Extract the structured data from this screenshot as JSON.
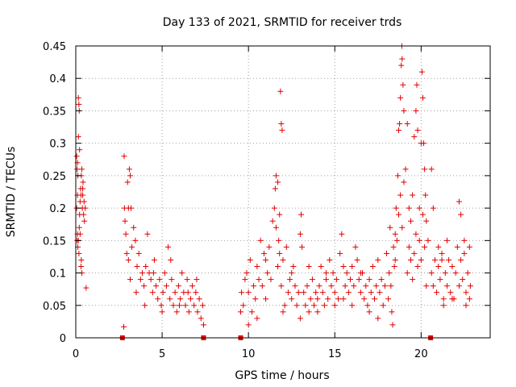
{
  "chart_data": {
    "type": "scatter",
    "title": "Day 133 of 2021, SRMTID for receiver trds",
    "xlabel": "GPS time / hours",
    "ylabel": "SRMTID / TECUs",
    "xlim": [
      0,
      24
    ],
    "ylim": [
      0,
      0.45
    ],
    "xticks": [
      0,
      5,
      10,
      15,
      20
    ],
    "yticks": [
      0,
      0.05,
      0.1,
      0.15,
      0.2,
      0.25,
      0.3,
      0.35,
      0.4,
      0.45
    ],
    "xtick_labels": [
      "0",
      "5",
      "10",
      "15",
      "20"
    ],
    "ytick_labels": [
      "0",
      "0.05",
      "0.1",
      "0.15",
      "0.2",
      "0.25",
      "0.3",
      "0.35",
      "0.4",
      "0.45"
    ],
    "grid": true,
    "marker": "+",
    "color": "#e00000",
    "gap_markers_x": [
      2.7,
      7.4,
      9.55,
      20.55
    ],
    "series": [
      {
        "name": "SRMTID",
        "points": [
          [
            0.05,
            0.28
          ],
          [
            0.08,
            0.26
          ],
          [
            0.1,
            0.27
          ],
          [
            0.12,
            0.25
          ],
          [
            0.15,
            0.37
          ],
          [
            0.15,
            0.31
          ],
          [
            0.18,
            0.36
          ],
          [
            0.2,
            0.35
          ],
          [
            0.05,
            0.2
          ],
          [
            0.1,
            0.16
          ],
          [
            0.12,
            0.14
          ],
          [
            0.15,
            0.15
          ],
          [
            0.18,
            0.13
          ],
          [
            0.2,
            0.17
          ],
          [
            0.22,
            0.19
          ],
          [
            0.25,
            0.21
          ],
          [
            0.28,
            0.23
          ],
          [
            0.3,
            0.22
          ],
          [
            0.32,
            0.25
          ],
          [
            0.35,
            0.26
          ],
          [
            0.38,
            0.2
          ],
          [
            0.4,
            0.22
          ],
          [
            0.42,
            0.24
          ],
          [
            0.45,
            0.19
          ],
          [
            0.3,
            0.11
          ],
          [
            0.32,
            0.12
          ],
          [
            0.35,
            0.1
          ],
          [
            0.4,
            0.23
          ],
          [
            0.48,
            0.21
          ],
          [
            0.5,
            0.18
          ],
          [
            0.55,
            0.2
          ],
          [
            0.6,
            0.077
          ],
          [
            0.22,
            0.29
          ],
          [
            0.1,
            0.22
          ],
          [
            0.08,
            0.15
          ],
          [
            0.25,
            0.16
          ],
          [
            2.78,
            0.017
          ],
          [
            2.8,
            0.28
          ],
          [
            2.82,
            0.2
          ],
          [
            2.85,
            0.18
          ],
          [
            2.9,
            0.16
          ],
          [
            2.95,
            0.13
          ],
          [
            3.0,
            0.24
          ],
          [
            3.05,
            0.2
          ],
          [
            3.1,
            0.26
          ],
          [
            3.15,
            0.25
          ],
          [
            3.2,
            0.2
          ],
          [
            3.05,
            0.12
          ],
          [
            3.15,
            0.09
          ],
          [
            3.25,
            0.14
          ],
          [
            3.35,
            0.17
          ],
          [
            3.45,
            0.15
          ],
          [
            3.55,
            0.11
          ],
          [
            3.65,
            0.13
          ],
          [
            3.75,
            0.09
          ],
          [
            3.85,
            0.1
          ],
          [
            3.95,
            0.08
          ],
          [
            4.05,
            0.11
          ],
          [
            4.15,
            0.16
          ],
          [
            4.25,
            0.1
          ],
          [
            4.35,
            0.09
          ],
          [
            4.45,
            0.07
          ],
          [
            4.55,
            0.12
          ],
          [
            4.65,
            0.08
          ],
          [
            4.75,
            0.06
          ],
          [
            4.85,
            0.09
          ],
          [
            4.95,
            0.05
          ],
          [
            5.05,
            0.07
          ],
          [
            5.15,
            0.1
          ],
          [
            5.25,
            0.08
          ],
          [
            5.35,
            0.14
          ],
          [
            5.45,
            0.06
          ],
          [
            5.55,
            0.09
          ],
          [
            5.65,
            0.05
          ],
          [
            5.75,
            0.07
          ],
          [
            5.85,
            0.04
          ],
          [
            5.95,
            0.08
          ],
          [
            6.05,
            0.06
          ],
          [
            6.15,
            0.1
          ],
          [
            6.25,
            0.07
          ],
          [
            6.35,
            0.05
          ],
          [
            6.45,
            0.09
          ],
          [
            6.55,
            0.04
          ],
          [
            6.65,
            0.06
          ],
          [
            6.75,
            0.08
          ],
          [
            6.85,
            0.05
          ],
          [
            6.95,
            0.07
          ],
          [
            7.05,
            0.04
          ],
          [
            7.15,
            0.06
          ],
          [
            7.25,
            0.03
          ],
          [
            7.35,
            0.05
          ],
          [
            7.4,
            0.02
          ],
          [
            4.0,
            0.05
          ],
          [
            4.5,
            0.1
          ],
          [
            5.0,
            0.04
          ],
          [
            5.5,
            0.12
          ],
          [
            6.0,
            0.05
          ],
          [
            6.5,
            0.07
          ],
          [
            7.0,
            0.09
          ],
          [
            3.5,
            0.07
          ],
          [
            9.55,
            0.04
          ],
          [
            9.6,
            0.07
          ],
          [
            9.7,
            0.05
          ],
          [
            9.8,
            0.09
          ],
          [
            9.9,
            0.1
          ],
          [
            10.0,
            0.07
          ],
          [
            10.1,
            0.12
          ],
          [
            10.2,
            0.04
          ],
          [
            10.3,
            0.08
          ],
          [
            10.4,
            0.06
          ],
          [
            10.5,
            0.11
          ],
          [
            10.6,
            0.09
          ],
          [
            10.7,
            0.15
          ],
          [
            10.8,
            0.08
          ],
          [
            10.9,
            0.13
          ],
          [
            11.0,
            0.06
          ],
          [
            11.1,
            0.1
          ],
          [
            11.2,
            0.14
          ],
          [
            11.3,
            0.09
          ],
          [
            11.4,
            0.18
          ],
          [
            11.5,
            0.2
          ],
          [
            11.55,
            0.23
          ],
          [
            11.6,
            0.25
          ],
          [
            11.7,
            0.24
          ],
          [
            11.75,
            0.15
          ],
          [
            11.8,
            0.19
          ],
          [
            11.85,
            0.38
          ],
          [
            11.9,
            0.33
          ],
          [
            11.95,
            0.32
          ],
          [
            11.6,
            0.17
          ],
          [
            11.7,
            0.11
          ],
          [
            11.8,
            0.13
          ],
          [
            11.9,
            0.08
          ],
          [
            12.0,
            0.12
          ],
          [
            12.1,
            0.05
          ],
          [
            12.2,
            0.14
          ],
          [
            12.3,
            0.07
          ],
          [
            12.4,
            0.09
          ],
          [
            12.5,
            0.06
          ],
          [
            12.6,
            0.11
          ],
          [
            12.7,
            0.08
          ],
          [
            12.8,
            0.05
          ],
          [
            12.9,
            0.07
          ],
          [
            13.0,
            0.16
          ],
          [
            13.05,
            0.19
          ],
          [
            13.1,
            0.14
          ],
          [
            13.2,
            0.07
          ],
          [
            13.3,
            0.05
          ],
          [
            13.4,
            0.08
          ],
          [
            13.5,
            0.04
          ],
          [
            13.6,
            0.06
          ],
          [
            13.7,
            0.09
          ],
          [
            13.8,
            0.05
          ],
          [
            13.9,
            0.07
          ],
          [
            14.0,
            0.06
          ],
          [
            14.1,
            0.08
          ],
          [
            14.2,
            0.11
          ],
          [
            14.3,
            0.07
          ],
          [
            14.4,
            0.05
          ],
          [
            14.5,
            0.09
          ],
          [
            14.6,
            0.06
          ],
          [
            14.7,
            0.12
          ],
          [
            14.8,
            0.08
          ],
          [
            14.9,
            0.1
          ],
          [
            15.0,
            0.07
          ],
          [
            15.1,
            0.09
          ],
          [
            15.2,
            0.06
          ],
          [
            15.3,
            0.13
          ],
          [
            15.4,
            0.16
          ],
          [
            15.5,
            0.11
          ],
          [
            15.6,
            0.08
          ],
          [
            15.7,
            0.1
          ],
          [
            15.8,
            0.07
          ],
          [
            15.9,
            0.09
          ],
          [
            16.0,
            0.11
          ],
          [
            16.1,
            0.08
          ],
          [
            16.2,
            0.14
          ],
          [
            16.3,
            0.12
          ],
          [
            16.4,
            0.09
          ],
          [
            16.5,
            0.07
          ],
          [
            16.6,
            0.1
          ],
          [
            16.7,
            0.06
          ],
          [
            16.8,
            0.08
          ],
          [
            16.9,
            0.05
          ],
          [
            17.0,
            0.09
          ],
          [
            17.1,
            0.07
          ],
          [
            17.2,
            0.11
          ],
          [
            17.3,
            0.06
          ],
          [
            17.4,
            0.08
          ],
          [
            17.5,
            0.12
          ],
          [
            17.6,
            0.07
          ],
          [
            17.7,
            0.09
          ],
          [
            17.8,
            0.05
          ],
          [
            17.9,
            0.08
          ],
          [
            18.0,
            0.13
          ],
          [
            18.1,
            0.06
          ],
          [
            18.15,
            0.1
          ],
          [
            18.2,
            0.17
          ],
          [
            18.25,
            0.08
          ],
          [
            18.3,
            0.04
          ],
          [
            18.35,
            0.02
          ],
          [
            18.4,
            0.14
          ],
          [
            18.45,
            0.11
          ],
          [
            18.5,
            0.16
          ],
          [
            10.0,
            0.02
          ],
          [
            10.5,
            0.03
          ],
          [
            11.0,
            0.12
          ],
          [
            12.0,
            0.04
          ],
          [
            13.0,
            0.03
          ],
          [
            14.0,
            0.04
          ],
          [
            15.0,
            0.05
          ],
          [
            16.0,
            0.05
          ],
          [
            17.0,
            0.04
          ],
          [
            17.5,
            0.03
          ],
          [
            12.5,
            0.1
          ],
          [
            13.5,
            0.11
          ],
          [
            14.5,
            0.1
          ],
          [
            15.5,
            0.06
          ],
          [
            16.5,
            0.1
          ],
          [
            18.5,
            0.12
          ],
          [
            18.55,
            0.2
          ],
          [
            18.6,
            0.15
          ],
          [
            18.65,
            0.25
          ],
          [
            18.7,
            0.32
          ],
          [
            18.75,
            0.33
          ],
          [
            18.8,
            0.37
          ],
          [
            18.85,
            0.42
          ],
          [
            18.88,
            0.45
          ],
          [
            18.9,
            0.43
          ],
          [
            18.95,
            0.39
          ],
          [
            19.0,
            0.35
          ],
          [
            18.7,
            0.19
          ],
          [
            18.8,
            0.22
          ],
          [
            18.9,
            0.17
          ],
          [
            19.0,
            0.24
          ],
          [
            19.1,
            0.26
          ],
          [
            19.2,
            0.33
          ],
          [
            19.3,
            0.2
          ],
          [
            19.4,
            0.18
          ],
          [
            19.5,
            0.22
          ],
          [
            19.6,
            0.31
          ],
          [
            19.7,
            0.35
          ],
          [
            19.75,
            0.39
          ],
          [
            19.8,
            0.32
          ],
          [
            19.9,
            0.2
          ],
          [
            20.0,
            0.3
          ],
          [
            20.05,
            0.41
          ],
          [
            20.1,
            0.37
          ],
          [
            20.15,
            0.3
          ],
          [
            20.2,
            0.26
          ],
          [
            20.25,
            0.22
          ],
          [
            20.3,
            0.18
          ],
          [
            20.4,
            0.15
          ],
          [
            19.2,
            0.1
          ],
          [
            19.3,
            0.14
          ],
          [
            19.4,
            0.12
          ],
          [
            19.5,
            0.09
          ],
          [
            19.6,
            0.13
          ],
          [
            19.7,
            0.16
          ],
          [
            19.8,
            0.11
          ],
          [
            19.9,
            0.15
          ],
          [
            20.0,
            0.12
          ],
          [
            20.1,
            0.19
          ],
          [
            20.2,
            0.14
          ],
          [
            20.3,
            0.08
          ],
          [
            20.6,
            0.1
          ],
          [
            20.7,
            0.08
          ],
          [
            20.8,
            0.12
          ],
          [
            20.9,
            0.07
          ],
          [
            21.0,
            0.11
          ],
          [
            21.1,
            0.09
          ],
          [
            21.2,
            0.13
          ],
          [
            21.3,
            0.06
          ],
          [
            21.4,
            0.1
          ],
          [
            21.5,
            0.08
          ],
          [
            21.6,
            0.12
          ],
          [
            21.7,
            0.07
          ],
          [
            21.8,
            0.11
          ],
          [
            21.9,
            0.06
          ],
          [
            22.0,
            0.1
          ],
          [
            22.1,
            0.14
          ],
          [
            22.2,
            0.08
          ],
          [
            22.3,
            0.12
          ],
          [
            22.4,
            0.09
          ],
          [
            22.5,
            0.13
          ],
          [
            22.6,
            0.07
          ],
          [
            22.7,
            0.1
          ],
          [
            22.8,
            0.06
          ],
          [
            22.85,
            0.08
          ],
          [
            20.6,
            0.26
          ],
          [
            20.7,
            0.2
          ],
          [
            21.0,
            0.14
          ],
          [
            21.3,
            0.05
          ],
          [
            21.5,
            0.15
          ],
          [
            21.8,
            0.06
          ],
          [
            22.2,
            0.21
          ],
          [
            22.3,
            0.19
          ],
          [
            22.5,
            0.15
          ],
          [
            22.6,
            0.05
          ],
          [
            22.8,
            0.14
          ],
          [
            21.2,
            0.12
          ]
        ]
      }
    ]
  }
}
